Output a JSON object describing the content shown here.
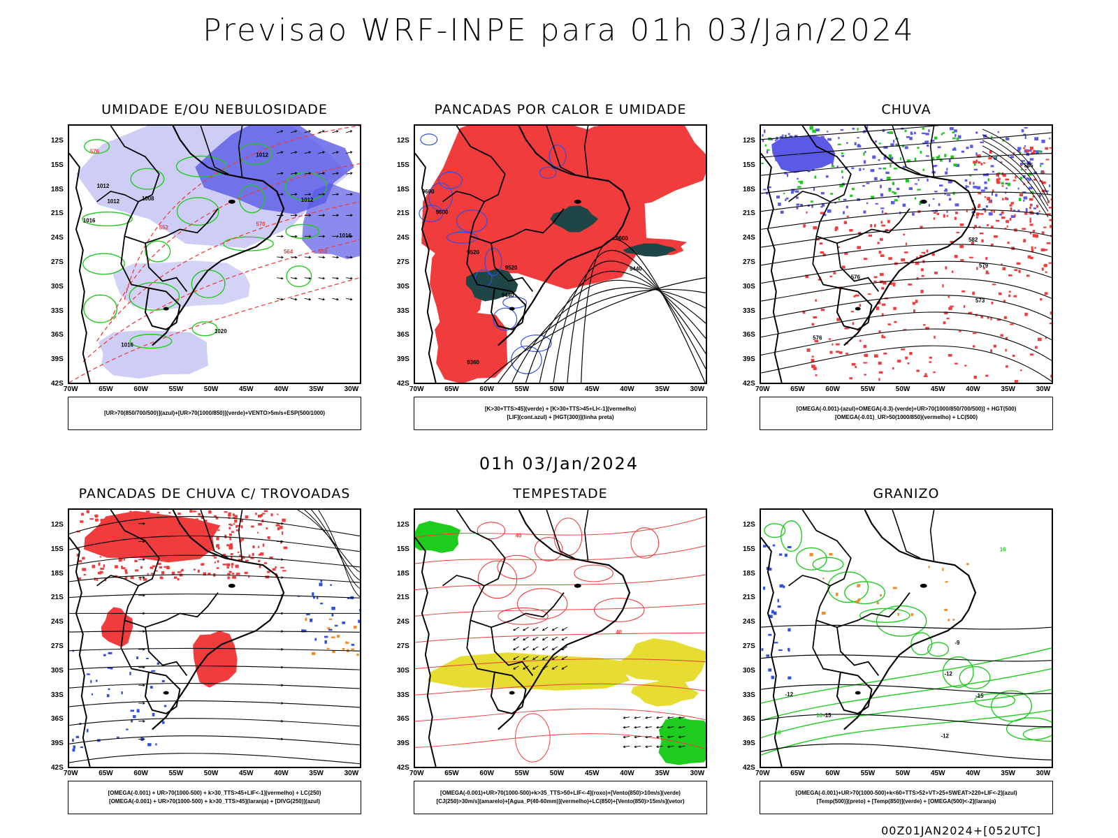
{
  "header": {
    "title": "Previsao WRF-INPE  para 01h 03/Jan/2024"
  },
  "middle_title": "01h 03/Jan/2024",
  "footer_code": "00Z01JAN2024+[052UTC]",
  "axes": {
    "lat_ticks": [
      "12S",
      "15S",
      "18S",
      "21S",
      "24S",
      "27S",
      "30S",
      "33S",
      "36S",
      "39S",
      "42S"
    ],
    "lon_ticks": [
      "70W",
      "65W",
      "60W",
      "55W",
      "50W",
      "45W",
      "40W",
      "35W",
      "30W"
    ]
  },
  "panels": [
    {
      "id": "umidade",
      "title": "UMIDADE E/OU NEBULOSIDADE",
      "legend": [
        "[UR>70(850/700/500)](azul)+[UR>70(1000/850)](verde)+VENTO>5m/s+ESP(500/1000)"
      ],
      "labels": [
        "1012",
        "1012",
        "1016",
        "1012",
        "1008",
        "1012",
        "576",
        "570",
        "564",
        "558",
        "552",
        "1016",
        "1020",
        "1016"
      ]
    },
    {
      "id": "pancadas",
      "title": "PANCADAS POR CALOR E UMIDADE",
      "legend": [
        "[K>30+TTS>45](verde) + [K>30+TTS>45+LI<-1](vermelho)",
        "[LIF](cont.azul) + [HGT(300)](linha preta)"
      ],
      "labels": [
        "9600",
        "9600",
        "9600",
        "9520",
        "9520",
        "9440",
        "9440",
        "9360"
      ]
    },
    {
      "id": "chuva",
      "title": "CHUVA",
      "legend": [
        "[OMEGA(-0.001)-(azul)+OMEGA(-0.3)-(verde)+UR>70(1000/850/700/500)] + HGT(500)",
        "[OMEGA(-0.01)_UR>50(1000/850)(vermelho) + LC(500)"
      ],
      "labels": [
        "585",
        "582",
        "579",
        "576",
        "573",
        "576"
      ]
    },
    {
      "id": "trovoadas",
      "title": "PANCADAS DE CHUVA C/ TROVOADAS",
      "legend": [
        "[OMEGA(-0.001) + UR>70(1000-500) + k>30_TTS>45+LIF<-1](vermelho) + LC(250)",
        "[OMEGA(-0.001) + UR>70(1000-500) + k>30_TTS>45](laranja) + [DIVG(250)](azul)"
      ],
      "labels": []
    },
    {
      "id": "tempestade",
      "title": "TEMPESTADE",
      "legend": [
        "[OMEGA(-0.001)+UR>70(1000-500)+k>35_TTS>50+LIF<-4](roxo)+[Vento(850)>10m/s](verde)",
        "[CJ(250)>30m/s](amarelo)+[Agua_P(40-60mm)](vermelho)+LC(850)+[Vento(850)>15m/s](vetor)"
      ],
      "labels": [
        "40",
        "40"
      ]
    },
    {
      "id": "granizo",
      "title": "GRANIZO",
      "legend": [
        "[OMEGA(-0.001)+UR>70(1000-500)+k<60+TTS>52+VT>25+SWEAT>220+LIF<-2](azul)",
        "[Temp(500)](preto) + [Temp(850)](verde) + [OMEGA(500)<-2](laranja)"
      ],
      "labels": [
        "-12",
        "-12",
        "-15",
        "-15",
        "-12",
        "-9",
        "16",
        "16",
        "16"
      ]
    }
  ],
  "colors": {
    "blue_light": "#c8c8f5",
    "blue": "#5a5ae6",
    "green": "#1ecc1e",
    "red": "#f03c3c",
    "darkteal": "#1e4646",
    "yellow": "#e6dc32",
    "orange": "#f08c28"
  }
}
